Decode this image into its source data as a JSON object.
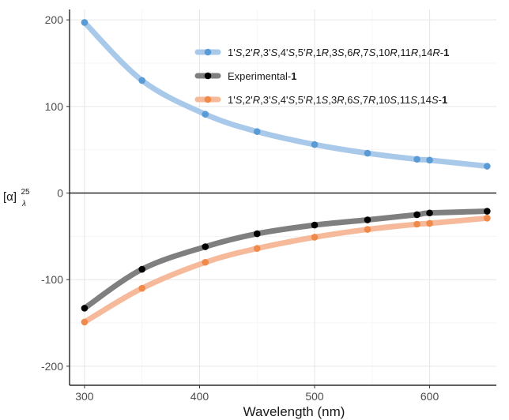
{
  "chart_data": {
    "type": "line",
    "xlabel": "Wavelength (nm)",
    "ylabel": {
      "main": "[α]",
      "superscript": "25",
      "subscript": "λ"
    },
    "xlim": [
      287,
      658
    ],
    "ylim": [
      -222,
      212
    ],
    "x_ticks": [
      300,
      400,
      500,
      600
    ],
    "y_ticks": [
      -200,
      -100,
      0,
      100,
      200
    ],
    "x_tick_labels": [
      "300",
      "400",
      "500",
      "600"
    ],
    "y_tick_labels": [
      "-200",
      "-100",
      "0",
      "100",
      "200"
    ],
    "grid": true,
    "zero_line": true,
    "legend_position": "top-right",
    "x": [
      300,
      350,
      405,
      450,
      500,
      546,
      589,
      600,
      650
    ],
    "series": [
      {
        "name": "1'S,2'R,3'S,4'S,5'R,1R,3S,6R,7S,10R,11R,14R-1",
        "name_parts": [
          {
            "t": "1'",
            "s": "n"
          },
          {
            "t": "S",
            "s": "i"
          },
          {
            "t": ",2'",
            "s": "n"
          },
          {
            "t": "R",
            "s": "i"
          },
          {
            "t": ",3'",
            "s": "n"
          },
          {
            "t": "S",
            "s": "i"
          },
          {
            "t": ",4'",
            "s": "n"
          },
          {
            "t": "S",
            "s": "i"
          },
          {
            "t": ",5'",
            "s": "n"
          },
          {
            "t": "R",
            "s": "i"
          },
          {
            "t": ",1",
            "s": "n"
          },
          {
            "t": "R",
            "s": "i"
          },
          {
            "t": ",3",
            "s": "n"
          },
          {
            "t": "S",
            "s": "i"
          },
          {
            "t": ",6",
            "s": "n"
          },
          {
            "t": "R",
            "s": "i"
          },
          {
            "t": ",7",
            "s": "n"
          },
          {
            "t": "S",
            "s": "i"
          },
          {
            "t": ",10",
            "s": "n"
          },
          {
            "t": "R",
            "s": "i"
          },
          {
            "t": ",11",
            "s": "n"
          },
          {
            "t": "R",
            "s": "i"
          },
          {
            "t": ",14",
            "s": "n"
          },
          {
            "t": "R",
            "s": "i"
          },
          {
            "t": "-",
            "s": "n"
          },
          {
            "t": "1",
            "s": "b"
          }
        ],
        "values": [
          197,
          130,
          91,
          71,
          56,
          46,
          39,
          38,
          31
        ],
        "line_color": "#a9c9ea",
        "point_color": "#5b9bd5"
      },
      {
        "name": "Experimental-1",
        "name_parts": [
          {
            "t": "Experimental-",
            "s": "n"
          },
          {
            "t": "1",
            "s": "b"
          }
        ],
        "values": [
          -133,
          -88,
          -62,
          -47,
          -37,
          -31,
          -25,
          -23,
          -21
        ],
        "line_color": "#7f7f7f",
        "point_color": "#000000"
      },
      {
        "name": "1'S,2'R,3'S,4'S,5'R,1S,3R,6S,7R,10S,11S,14S-1",
        "name_parts": [
          {
            "t": "1'",
            "s": "n"
          },
          {
            "t": "S",
            "s": "i"
          },
          {
            "t": ",2'",
            "s": "n"
          },
          {
            "t": "R",
            "s": "i"
          },
          {
            "t": ",3'",
            "s": "n"
          },
          {
            "t": "S",
            "s": "i"
          },
          {
            "t": ",4'",
            "s": "n"
          },
          {
            "t": "S",
            "s": "i"
          },
          {
            "t": ",5'",
            "s": "n"
          },
          {
            "t": "R",
            "s": "i"
          },
          {
            "t": ",1",
            "s": "n"
          },
          {
            "t": "S",
            "s": "i"
          },
          {
            "t": ",3",
            "s": "n"
          },
          {
            "t": "R",
            "s": "i"
          },
          {
            "t": ",6",
            "s": "n"
          },
          {
            "t": "S",
            "s": "i"
          },
          {
            "t": ",7",
            "s": "n"
          },
          {
            "t": "R",
            "s": "i"
          },
          {
            "t": ",10",
            "s": "n"
          },
          {
            "t": "S",
            "s": "i"
          },
          {
            "t": ",11",
            "s": "n"
          },
          {
            "t": "S",
            "s": "i"
          },
          {
            "t": ",14",
            "s": "n"
          },
          {
            "t": "S",
            "s": "i"
          },
          {
            "t": "-",
            "s": "n"
          },
          {
            "t": "1",
            "s": "b"
          }
        ],
        "values": [
          -149,
          -110,
          -80,
          -64,
          -51,
          -42,
          -36,
          -35,
          -29
        ],
        "line_color": "#f6b99a",
        "point_color": "#f08a4b"
      }
    ]
  }
}
